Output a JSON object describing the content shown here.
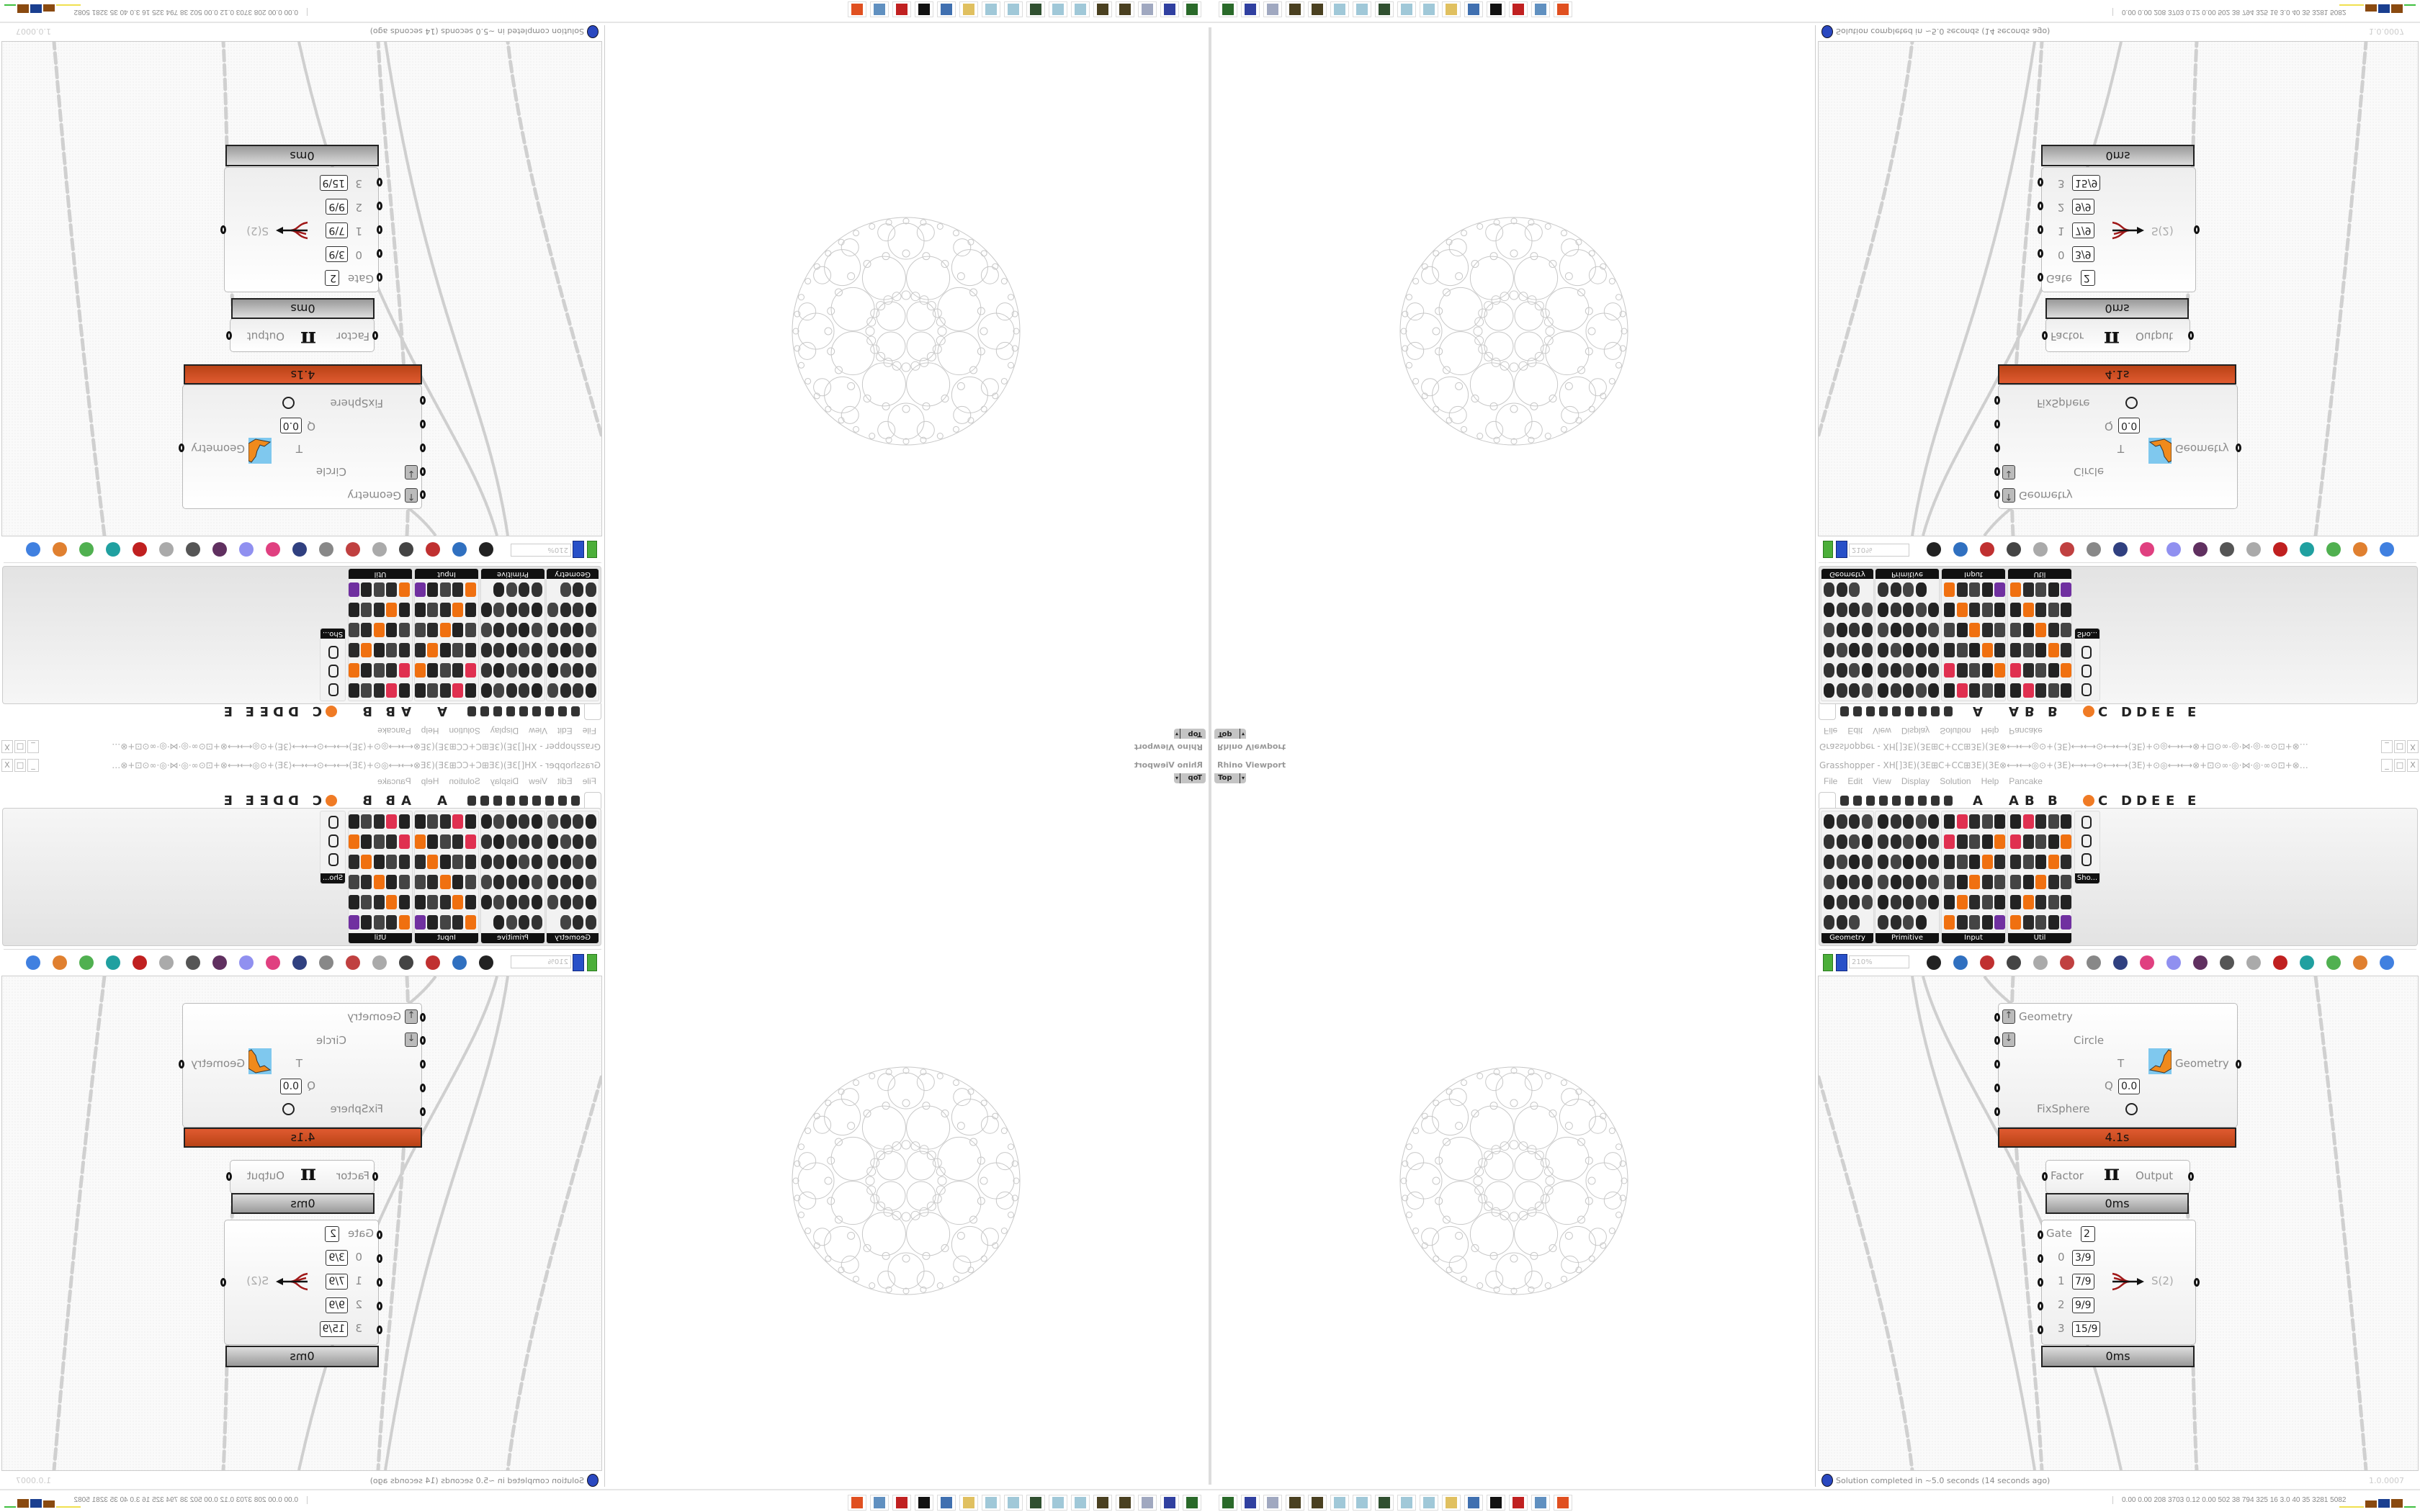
{
  "rhino": {
    "title": "Rhino Viewport",
    "view_label": "Top",
    "dropdown": "▾"
  },
  "grasshopper": {
    "title": "Grasshopper - XH[]3E)(3E⊞C+CC⊞3E)(3E⊗⟷⟷◎⊙+⟨3E)⟷⟷⊙⟷⟷⟨3E⟩+⊙◎⟷⟷⊗+⊡⊙∞·◎·⋈·◎·∞⊙⊡+⊗…",
    "window_buttons": [
      "_",
      "□",
      "X"
    ],
    "menu": [
      "File",
      "Edit",
      "View",
      "Display",
      "Solution",
      "Help",
      "Pancake"
    ],
    "tab_letters": [
      "A",
      "A",
      "B",
      "B",
      "C",
      "D",
      "D",
      "E",
      "E",
      "E"
    ],
    "panels": [
      "Geometry",
      "Primitive",
      "Input",
      "Util",
      "Sho..."
    ],
    "zoom": "210%",
    "status": "Solution completed in ~5.0 seconds (14 seconds ago)",
    "version": "1.0.0007"
  },
  "nodes": {
    "kangaroo": {
      "inputs": [
        "Geometry",
        "Circle",
        "T",
        "Q",
        "FixSphere"
      ],
      "q_value": "0.0",
      "output": "Geometry",
      "time": "4.1s",
      "accent": "#d4532a"
    },
    "pi": {
      "input": "Factor",
      "symbol": "π",
      "output": "Output",
      "time": "0ms"
    },
    "gate": {
      "gate_label": "Gate",
      "gate_value": "2",
      "indices": [
        "0",
        "1",
        "2",
        "3"
      ],
      "values": [
        "3/9",
        "7/9",
        "9/9",
        "15/9"
      ],
      "output": "S(2)",
      "time": "0ms"
    }
  },
  "taskbar": {
    "icons": [
      "status-monitor",
      "floppy-64",
      "scanner",
      "pinecone",
      "pinecone",
      "notepad",
      "notepad",
      "system-monitor",
      "notepad",
      "notepad",
      "folder",
      "presentation",
      "rhino",
      "settings-red",
      "calculator",
      "firefox"
    ],
    "stats": "0.00 0.00 208 3703 0.12 0.00 502 38 794 325 16 3.0 40 35 3281 5082"
  },
  "mirroring": "image is a 4-way kaleidoscope: bottom-right original, bottom-left flipped horizontally, top-right flipped vertically, top-left rotated 180°"
}
